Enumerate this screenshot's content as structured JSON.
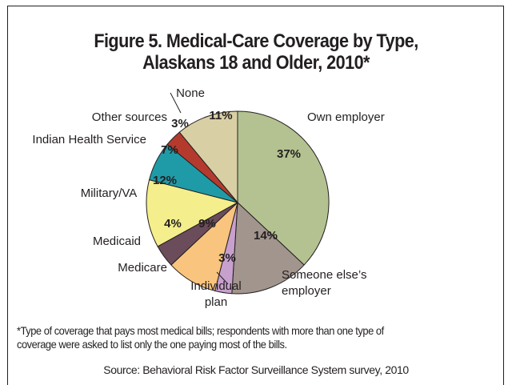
{
  "chart_data": {
    "type": "pie",
    "title": "Figure 5. Medical-Care Coverage by Type,",
    "title_line2": "Alaskans 18 and Older, 2010*",
    "start_angle_deg": 0,
    "direction": "clockwise",
    "slices": [
      {
        "label": "Own employer",
        "label_lines": [
          "Own employer"
        ],
        "value": 37,
        "value_label": "37%",
        "color": "#b3c290"
      },
      {
        "label": "Someone else's employer",
        "label_lines": [
          "Someone else’s",
          "employer"
        ],
        "value": 14,
        "value_label": "14%",
        "color": "#a2958e"
      },
      {
        "label": "Individual plan",
        "label_lines": [
          "Individual",
          "plan"
        ],
        "value": 3,
        "value_label": "3%",
        "color": "#c8a0cd"
      },
      {
        "label": "Medicare",
        "label_lines": [
          "Medicare"
        ],
        "value": 9,
        "value_label": "9%",
        "color": "#f9c47d"
      },
      {
        "label": "Medicaid",
        "label_lines": [
          "Medicaid"
        ],
        "value": 4,
        "value_label": "4%",
        "color": "#6b4c5a"
      },
      {
        "label": "Military/VA",
        "label_lines": [
          "Military/VA"
        ],
        "value": 12,
        "value_label": "12%",
        "color": "#f4ee8c"
      },
      {
        "label": "Indian Health Service",
        "label_lines": [
          "Indian Health Service"
        ],
        "value": 7,
        "value_label": "7%",
        "color": "#1f9ba8"
      },
      {
        "label": "Other sources",
        "label_lines": [
          "Other sources"
        ],
        "value": 3,
        "value_label": "3%",
        "color": "#b53a2e"
      },
      {
        "label": "None",
        "label_lines": [
          "None"
        ],
        "value": 11,
        "value_label": "11%",
        "color": "#d9cfa5"
      }
    ]
  },
  "footnote": {
    "line1": "*Type of coverage that pays most medical bills; respondents with more than one type of",
    "line2": "coverage were asked to list only the one paying most of the bills."
  },
  "source": "Source: Behavioral Risk Factor Surveillance System survey, 2010"
}
